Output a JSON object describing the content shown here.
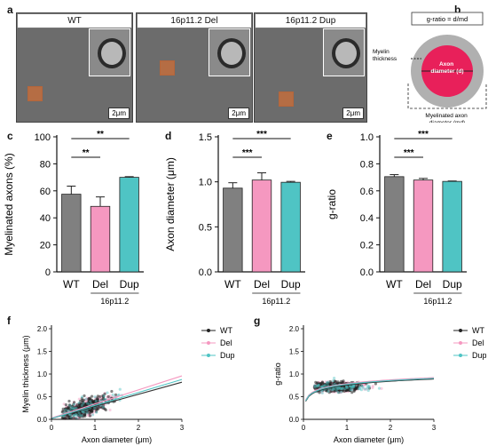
{
  "panels": {
    "a": "a",
    "b": "b",
    "c": "c",
    "d": "d",
    "e": "e",
    "f": "f",
    "g": "g"
  },
  "micrographs": [
    {
      "label": "WT",
      "scale": "2μm"
    },
    {
      "label": "16p11.2 Del",
      "scale": "2μm"
    },
    {
      "label": "16p11.2 Dup",
      "scale": "2μm"
    }
  ],
  "schematic": {
    "formula": "g-ratio = d/md",
    "myelin_label": "Myelin\nthickness",
    "axon_label": "Axon\ndiameter (d)",
    "myelinated_label": "Myelinated axon\ndiameter (md)"
  },
  "colors": {
    "WT": "#808080",
    "Del": "#f598c0",
    "Dup": "#4fc4c4",
    "axon": "#e8205a",
    "myelin": "#b0b0b0"
  },
  "chart_data": [
    {
      "type": "bar",
      "panel": "c",
      "categories": [
        "WT",
        "Del",
        "Dup"
      ],
      "values": [
        57.5,
        48.5,
        70.0
      ],
      "errors": [
        6.0,
        7.0,
        0.5
      ],
      "ylabel": "Myelinated axons (%)",
      "ylim": [
        0,
        100
      ],
      "yticks": [
        "0",
        "20",
        "40",
        "60",
        "80",
        "100"
      ],
      "group_label": "16p11.2",
      "significance": [
        {
          "pair": [
            "WT",
            "Del"
          ],
          "mark": "**"
        },
        {
          "pair": [
            "WT",
            "Dup"
          ],
          "mark": "**"
        }
      ]
    },
    {
      "type": "bar",
      "panel": "d",
      "categories": [
        "WT",
        "Del",
        "Dup"
      ],
      "values": [
        0.93,
        1.02,
        0.995
      ],
      "errors": [
        0.06,
        0.08,
        0.01
      ],
      "ylabel": "Axon diameter (μm)",
      "ylim": [
        0,
        1.5
      ],
      "yticks": [
        "0.0",
        "0.5",
        "1.0",
        "1.5"
      ],
      "group_label": "16p11.2",
      "significance": [
        {
          "pair": [
            "WT",
            "Del"
          ],
          "mark": "***"
        },
        {
          "pair": [
            "WT",
            "Dup"
          ],
          "mark": "***"
        }
      ]
    },
    {
      "type": "bar",
      "panel": "e",
      "categories": [
        "WT",
        "Del",
        "Dup"
      ],
      "values": [
        0.705,
        0.68,
        0.67
      ],
      "errors": [
        0.015,
        0.012,
        0.003
      ],
      "ylabel": "g-ratio",
      "ylim": [
        0,
        1.0
      ],
      "yticks": [
        "0.0",
        "0.2",
        "0.4",
        "0.6",
        "0.8",
        "1.0"
      ],
      "group_label": "16p11.2",
      "significance": [
        {
          "pair": [
            "WT",
            "Del"
          ],
          "mark": "***"
        },
        {
          "pair": [
            "WT",
            "Dup"
          ],
          "mark": "***"
        }
      ]
    },
    {
      "type": "scatter",
      "panel": "f",
      "xlabel": "Axon diameter (μm)",
      "ylabel": "Myelin thickness (μm)",
      "xlim": [
        0,
        3
      ],
      "ylim": [
        0,
        2.0
      ],
      "xticks": [
        "0",
        "1",
        "2",
        "3"
      ],
      "yticks": [
        "0.0",
        "0.5",
        "1.0",
        "1.5",
        "2.0"
      ],
      "legend_position": "top-right",
      "series": [
        {
          "name": "WT",
          "fit": [
            [
              0,
              0.02
            ],
            [
              3,
              0.82
            ]
          ]
        },
        {
          "name": "Del",
          "fit": [
            [
              0,
              0.03
            ],
            [
              3,
              0.96
            ]
          ]
        },
        {
          "name": "Dup",
          "fit": [
            [
              0,
              0.02
            ],
            [
              3,
              0.88
            ]
          ]
        }
      ]
    },
    {
      "type": "scatter",
      "panel": "g",
      "xlabel": "Axon diameter (μm)",
      "ylabel": "g-ratio",
      "xlim": [
        0,
        3
      ],
      "ylim": [
        0,
        2.0
      ],
      "xticks": [
        "0",
        "1",
        "2",
        "3"
      ],
      "yticks": [
        "0.0",
        "0.5",
        "1.0",
        "1.5",
        "2.0"
      ],
      "legend_position": "top-right",
      "series": [
        {
          "name": "WT",
          "fit": "log"
        },
        {
          "name": "Del",
          "fit": "log"
        },
        {
          "name": "Dup",
          "fit": "log"
        }
      ]
    }
  ]
}
